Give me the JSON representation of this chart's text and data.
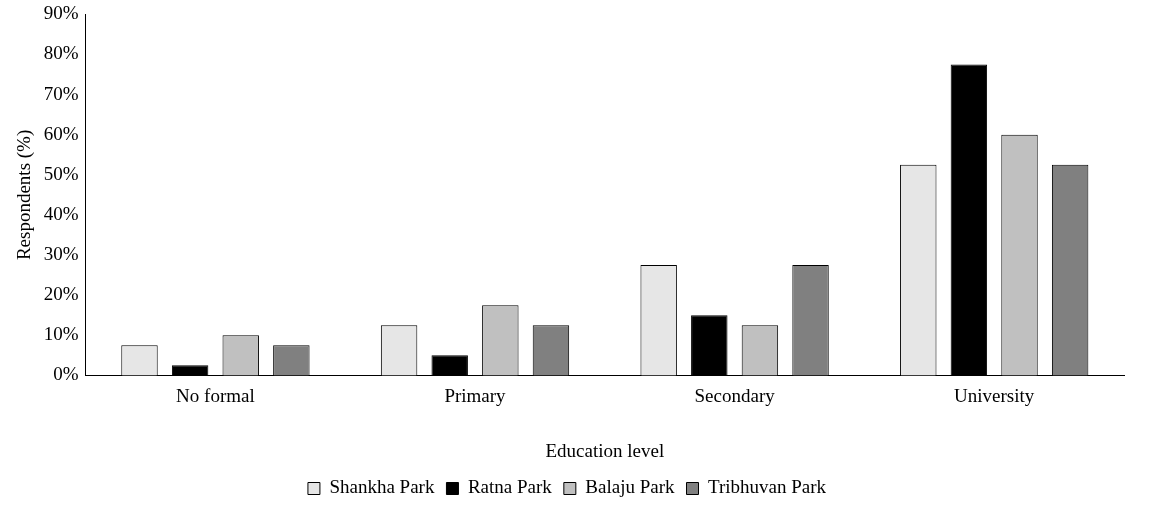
{
  "chart_data": {
    "type": "bar",
    "xlabel": "Education level",
    "ylabel": "Respondents (%)",
    "categories": [
      "No formal",
      "Primary",
      "Secondary",
      "University"
    ],
    "series": [
      {
        "name": "Shankha Park",
        "color": "#e6e6e6",
        "values": [
          7.5,
          12.5,
          27.5,
          52.5
        ]
      },
      {
        "name": "Ratna Park",
        "color": "#000000",
        "values": [
          2.5,
          5,
          15,
          77.5
        ]
      },
      {
        "name": "Balaju Park",
        "color": "#c0c0c0",
        "values": [
          10,
          17.5,
          12.5,
          60
        ]
      },
      {
        "name": "Tribhuvan Park",
        "color": "#808080",
        "values": [
          7.5,
          12.5,
          27.5,
          52.5
        ]
      }
    ],
    "ylim": [
      0,
      90
    ],
    "yticks": [
      {
        "value": 0,
        "label": "0%"
      },
      {
        "value": 10,
        "label": "10%"
      },
      {
        "value": 20,
        "label": "20%"
      },
      {
        "value": 30,
        "label": "30%"
      },
      {
        "value": 40,
        "label": "40%"
      },
      {
        "value": 50,
        "label": "50%"
      },
      {
        "value": 60,
        "label": "60%"
      },
      {
        "value": 70,
        "label": "70%"
      },
      {
        "value": 80,
        "label": "80%"
      },
      {
        "value": 90,
        "label": "90%"
      }
    ],
    "grid": false,
    "legend": "bottom"
  }
}
